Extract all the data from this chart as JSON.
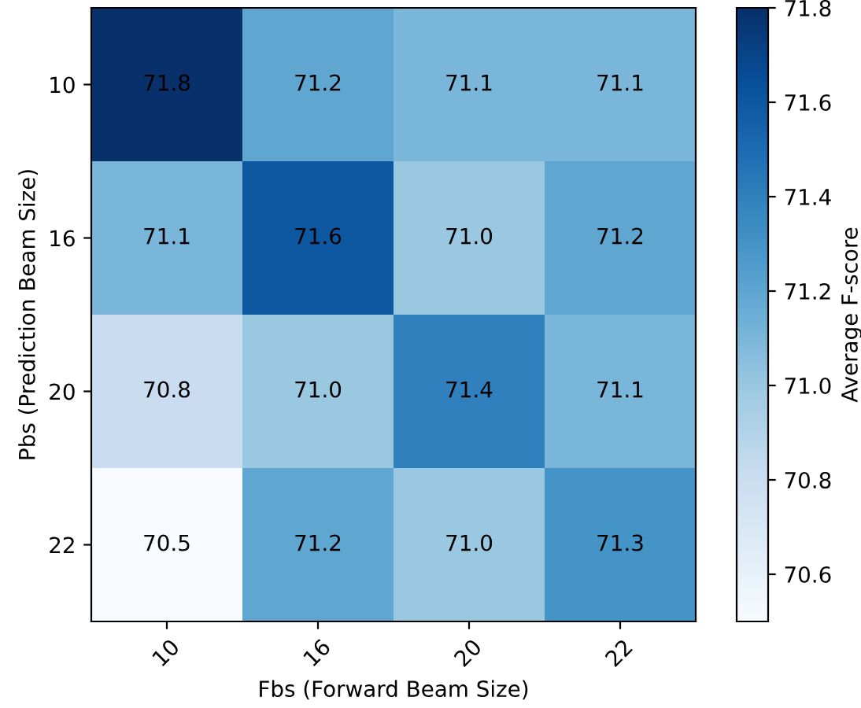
{
  "chart_data": {
    "type": "heatmap",
    "xlabel": "Fbs (Forward Beam Size)",
    "ylabel": "Pbs (Prediction Beam Size)",
    "clabel": "Average F-score",
    "categories": [
      "10",
      "16",
      "20",
      "22"
    ],
    "y_categories": [
      "10",
      "16",
      "20",
      "22"
    ],
    "cells": [
      [
        71.8,
        71.2,
        71.1,
        71.1
      ],
      [
        71.1,
        71.6,
        71.0,
        71.2
      ],
      [
        70.8,
        71.0,
        71.4,
        71.1
      ],
      [
        70.5,
        71.2,
        71.0,
        71.3
      ]
    ],
    "clim": [
      70.5,
      71.8
    ],
    "cticks": [
      70.6,
      70.8,
      {
        "value": 71.0,
        "label": "71.0"
      },
      71.2,
      71.4,
      71.6,
      71.8
    ],
    "cell_labels": [
      [
        "71.8",
        "71.2",
        "71.1",
        "71.1"
      ],
      [
        "71.1",
        "71.6",
        "71.0",
        "71.2"
      ],
      [
        "70.8",
        "71.0",
        "71.4",
        "71.1"
      ],
      [
        "70.5",
        "71.2",
        "71.0",
        "71.3"
      ]
    ],
    "data_labels": true
  }
}
